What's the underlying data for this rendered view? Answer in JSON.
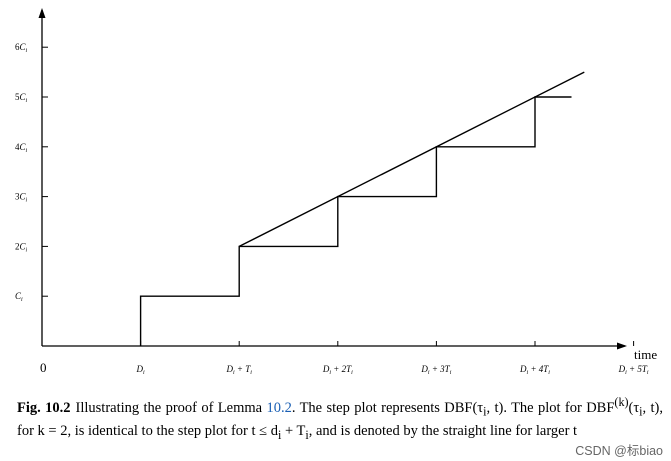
{
  "chart_data": {
    "type": "line",
    "title": "",
    "xlabel": "time",
    "ylabel": "",
    "origin_label": "0",
    "x_ticks": [
      "D_i",
      "D_i+T_i",
      "D_i+2T_i",
      "D_i+3T_i",
      "D_i+4T_i",
      "D_i+5T_i"
    ],
    "x_tick_labels": [
      {
        "base": "D",
        "sub": "i",
        "rest": ""
      },
      {
        "base": "D",
        "sub": "i",
        "rest": " + T",
        "sub2": "i"
      },
      {
        "base": "D",
        "sub": "i",
        "rest": " + 2T",
        "sub2": "i"
      },
      {
        "base": "D",
        "sub": "i",
        "rest": " + 3T",
        "sub2": "i"
      },
      {
        "base": "D",
        "sub": "i",
        "rest": " + 4T",
        "sub2": "i"
      },
      {
        "base": "D",
        "sub": "i",
        "rest": " + 5T",
        "sub2": "i"
      }
    ],
    "y_ticks": [
      "C_i",
      "2C_i",
      "3C_i",
      "4C_i",
      "5C_i",
      "6C_i"
    ],
    "y_tick_labels": [
      {
        "pre": "",
        "base": "C",
        "sub": "i"
      },
      {
        "pre": "2",
        "base": "C",
        "sub": "i"
      },
      {
        "pre": "3",
        "base": "C",
        "sub": "i"
      },
      {
        "pre": "4",
        "base": "C",
        "sub": "i"
      },
      {
        "pre": "5",
        "base": "C",
        "sub": "i"
      },
      {
        "pre": "6",
        "base": "C",
        "sub": "i"
      }
    ],
    "series": [
      {
        "kind": "step",
        "x": [
          1,
          1,
          2,
          2,
          3,
          3,
          4,
          4,
          5,
          5,
          5.37
        ],
        "y": [
          0,
          1,
          1,
          2,
          2,
          3,
          3,
          4,
          4,
          5,
          5
        ]
      },
      {
        "kind": "straight",
        "x": [
          2,
          5.5
        ],
        "y": [
          2,
          5.5
        ]
      }
    ],
    "x_units": "D_i + (n-1)T_i",
    "y_units": "C_i",
    "grid": false
  },
  "caption": {
    "label": "Fig. 10.2",
    "line1_a": "Illustrating the proof of Lemma ",
    "line1_ref": "10.2",
    "line1_b": ". The step plot represents DBF(τ",
    "line1_c": ", t). The plot for",
    "line2_a": "DBF",
    "line2_sup": "(k)",
    "line2_b": "(τ",
    "line2_c": ", t), for k = 2, is identical to the step plot for t ≤ d",
    "line2_d": " + T",
    "line2_e": ", and is denoted by the straight",
    "line3": "line for larger t",
    "sub_i": "i"
  },
  "watermark": "CSDN @标biao"
}
